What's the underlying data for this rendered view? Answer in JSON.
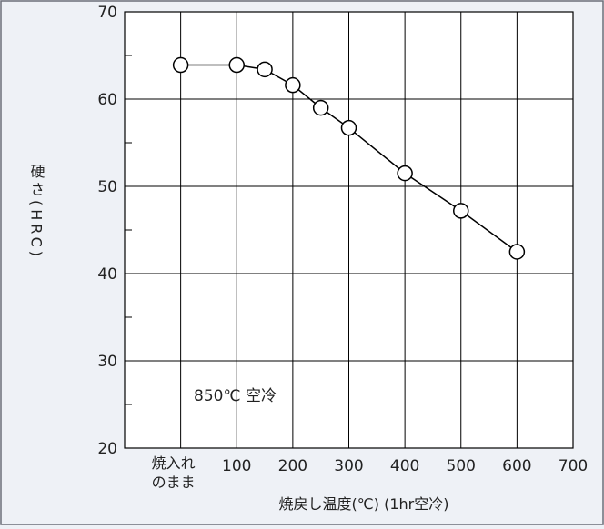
{
  "chart_data": {
    "type": "line",
    "title": "",
    "ylabel": "硬さ(HRC)",
    "xlabel": "焼戻し温度(℃) (1hr空冷)",
    "annotation": "850℃ 空冷",
    "x_tick_labels": [
      {
        "x": 0,
        "lines": [
          "焼入れ",
          "のまま"
        ]
      },
      {
        "x": 100,
        "lines": [
          "100"
        ]
      },
      {
        "x": 200,
        "lines": [
          "200"
        ]
      },
      {
        "x": 300,
        "lines": [
          "300"
        ]
      },
      {
        "x": 400,
        "lines": [
          "400"
        ]
      },
      {
        "x": 500,
        "lines": [
          "500"
        ]
      },
      {
        "x": 600,
        "lines": [
          "600"
        ]
      },
      {
        "x": 700,
        "lines": [
          "700"
        ]
      }
    ],
    "y_ticks": [
      20,
      30,
      40,
      50,
      60,
      70
    ],
    "xlim": [
      -100,
      700
    ],
    "ylim": [
      20,
      70
    ],
    "grid": true,
    "series": [
      {
        "x": [
          0,
          100,
          150,
          200,
          250,
          300,
          400,
          500,
          600
        ],
        "y": [
          63.9,
          63.9,
          63.4,
          61.6,
          59.0,
          56.7,
          51.5,
          47.2,
          42.5
        ]
      }
    ],
    "colors": {
      "background": "#eef1f6",
      "plot_area": "#ffffff",
      "line": "#000000",
      "marker_fill": "#ffffff"
    }
  }
}
